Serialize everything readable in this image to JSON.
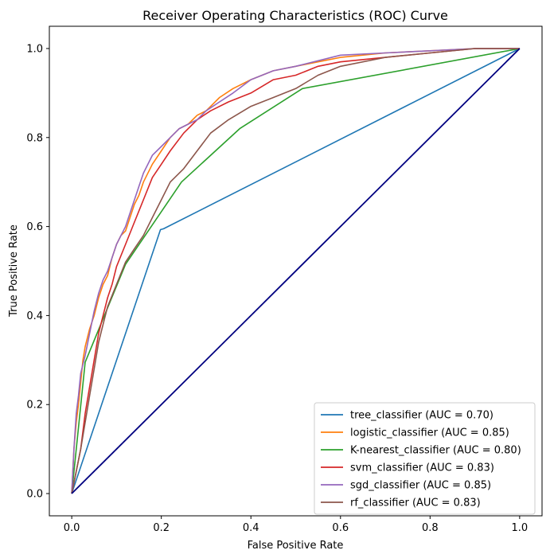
{
  "chart_data": {
    "type": "line",
    "title": "Receiver Operating Characteristics (ROC) Curve",
    "xlabel": "False Positive Rate",
    "ylabel": "True Positive Rate",
    "xlim": [
      -0.05,
      1.05
    ],
    "ylim": [
      -0.05,
      1.05
    ],
    "xticks": [
      "0.0",
      "0.2",
      "0.4",
      "0.6",
      "0.8",
      "1.0"
    ],
    "yticks": [
      "0.0",
      "0.2",
      "0.4",
      "0.6",
      "0.8",
      "1.0"
    ],
    "grid": false,
    "legend_position": "lower-right",
    "reference_line": {
      "x": [
        0,
        1
      ],
      "y": [
        0,
        1
      ],
      "color": "#000080"
    },
    "series": [
      {
        "name": "tree_classifier (AUC = 0.70)",
        "color": "#1f77b4",
        "x": [
          0,
          0.198,
          0.205,
          1
        ],
        "y": [
          0,
          0.593,
          0.595,
          1
        ]
      },
      {
        "name": "logistic_classifier (AUC = 0.85)",
        "color": "#ff7f0e",
        "x": [
          0,
          0.005,
          0.01,
          0.015,
          0.02,
          0.025,
          0.03,
          0.04,
          0.05,
          0.06,
          0.07,
          0.08,
          0.09,
          0.1,
          0.11,
          0.12,
          0.13,
          0.14,
          0.15,
          0.16,
          0.18,
          0.2,
          0.22,
          0.24,
          0.26,
          0.28,
          0.3,
          0.33,
          0.36,
          0.4,
          0.45,
          0.5,
          0.55,
          0.6,
          0.7,
          0.8,
          0.9,
          1
        ],
        "y": [
          0,
          0.1,
          0.16,
          0.2,
          0.25,
          0.3,
          0.33,
          0.37,
          0.4,
          0.44,
          0.47,
          0.49,
          0.53,
          0.56,
          0.58,
          0.59,
          0.62,
          0.65,
          0.67,
          0.7,
          0.74,
          0.77,
          0.8,
          0.82,
          0.83,
          0.85,
          0.86,
          0.89,
          0.91,
          0.93,
          0.95,
          0.96,
          0.97,
          0.98,
          0.99,
          0.995,
          1.0,
          1.0
        ]
      },
      {
        "name": "K-nearest_classifier (AUC = 0.80)",
        "color": "#2ca02c",
        "x": [
          0,
          0.03,
          0.12,
          0.245,
          0.375,
          0.515,
          1
        ],
        "y": [
          0,
          0.295,
          0.515,
          0.7,
          0.82,
          0.91,
          1
        ]
      },
      {
        "name": "svm_classifier (AUC = 0.83)",
        "color": "#d62728",
        "x": [
          0,
          0.01,
          0.02,
          0.03,
          0.04,
          0.05,
          0.06,
          0.07,
          0.08,
          0.09,
          0.1,
          0.12,
          0.14,
          0.16,
          0.18,
          0.2,
          0.22,
          0.25,
          0.28,
          0.31,
          0.35,
          0.4,
          0.45,
          0.5,
          0.55,
          0.6,
          0.7,
          0.8,
          0.9,
          1
        ],
        "y": [
          0,
          0.05,
          0.1,
          0.18,
          0.24,
          0.3,
          0.36,
          0.4,
          0.44,
          0.47,
          0.51,
          0.56,
          0.61,
          0.66,
          0.71,
          0.74,
          0.77,
          0.81,
          0.84,
          0.86,
          0.88,
          0.9,
          0.93,
          0.94,
          0.96,
          0.97,
          0.98,
          0.99,
          1.0,
          1.0
        ]
      },
      {
        "name": "sgd_classifier (AUC = 0.85)",
        "color": "#9467bd",
        "x": [
          0,
          0.005,
          0.01,
          0.015,
          0.02,
          0.03,
          0.04,
          0.05,
          0.06,
          0.07,
          0.08,
          0.09,
          0.1,
          0.11,
          0.12,
          0.13,
          0.14,
          0.15,
          0.16,
          0.18,
          0.2,
          0.22,
          0.24,
          0.26,
          0.28,
          0.3,
          0.33,
          0.36,
          0.4,
          0.45,
          0.5,
          0.6,
          0.7,
          0.8,
          0.9,
          1
        ],
        "y": [
          0,
          0.1,
          0.18,
          0.22,
          0.27,
          0.31,
          0.36,
          0.41,
          0.45,
          0.48,
          0.5,
          0.53,
          0.56,
          0.58,
          0.6,
          0.63,
          0.66,
          0.69,
          0.72,
          0.76,
          0.78,
          0.8,
          0.82,
          0.83,
          0.84,
          0.86,
          0.88,
          0.9,
          0.93,
          0.95,
          0.96,
          0.985,
          0.99,
          0.995,
          1.0,
          1.0
        ]
      },
      {
        "name": "rf_classifier (AUC = 0.83)",
        "color": "#8c564b",
        "x": [
          0,
          0.01,
          0.02,
          0.03,
          0.04,
          0.05,
          0.06,
          0.07,
          0.08,
          0.1,
          0.12,
          0.14,
          0.16,
          0.18,
          0.2,
          0.22,
          0.25,
          0.28,
          0.31,
          0.35,
          0.4,
          0.45,
          0.5,
          0.55,
          0.6,
          0.7,
          0.8,
          0.9,
          1
        ],
        "y": [
          0,
          0.05,
          0.1,
          0.16,
          0.22,
          0.28,
          0.34,
          0.38,
          0.42,
          0.47,
          0.52,
          0.55,
          0.58,
          0.62,
          0.66,
          0.7,
          0.73,
          0.77,
          0.81,
          0.84,
          0.87,
          0.89,
          0.91,
          0.94,
          0.96,
          0.98,
          0.99,
          1.0,
          1.0
        ]
      }
    ]
  }
}
